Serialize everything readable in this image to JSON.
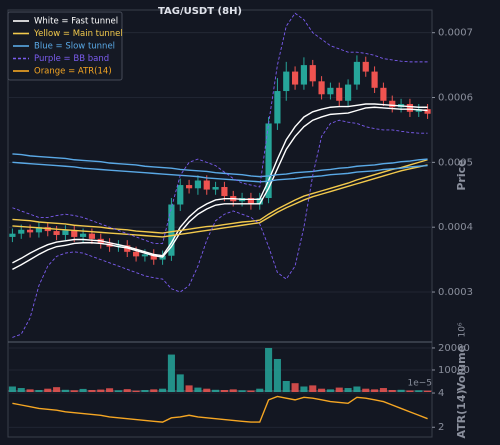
{
  "chart_data": {
    "type": "candlestick",
    "title": "TAG/USDT (8H)",
    "legend": "upper left",
    "up_color": "#26a69a",
    "down_color": "#ef5350",
    "open": [
      0.000385,
      0.00039,
      0.000396,
      0.000392,
      0.0004,
      0.000394,
      0.000388,
      0.000395,
      0.000385,
      0.00039,
      0.000382,
      0.000375,
      0.00037,
      0.000372,
      0.000362,
      0.000355,
      0.000358,
      0.00035,
      0.000356,
      0.000435,
      0.000465,
      0.00046,
      0.000472,
      0.000458,
      0.000462,
      0.000448,
      0.00044,
      0.000445,
      0.000435,
      0.000445,
      0.00056,
      0.00061,
      0.00064,
      0.00062,
      0.00065,
      0.000625,
      0.000605,
      0.000615,
      0.000595,
      0.00062,
      0.000655,
      0.00064,
      0.000615,
      0.000595,
      0.000585,
      0.00059,
      0.000578,
      0.000582
    ],
    "high": [
      0.000398,
      0.000404,
      0.000404,
      0.000408,
      0.000408,
      0.000402,
      0.000403,
      0.000403,
      0.000398,
      0.000398,
      0.00039,
      0.000383,
      0.00038,
      0.00038,
      0.00037,
      0.000366,
      0.000366,
      0.000364,
      0.000445,
      0.000475,
      0.000473,
      0.00048,
      0.00048,
      0.00047,
      0.00047,
      0.000456,
      0.000453,
      0.000453,
      0.000453,
      0.00057,
      0.00063,
      0.000655,
      0.000648,
      0.000662,
      0.000658,
      0.000633,
      0.000623,
      0.000623,
      0.000628,
      0.000665,
      0.000663,
      0.000648,
      0.000623,
      0.000603,
      0.000598,
      0.000598,
      0.00059,
      0.00059
    ],
    "low": [
      0.000377,
      0.000382,
      0.000384,
      0.000384,
      0.000386,
      0.00038,
      0.00038,
      0.000377,
      0.000377,
      0.000374,
      0.000367,
      0.000362,
      0.000362,
      0.000354,
      0.000347,
      0.000347,
      0.000342,
      0.000342,
      0.000348,
      0.000425,
      0.000452,
      0.00045,
      0.00045,
      0.00045,
      0.00044,
      0.000432,
      0.000432,
      0.000427,
      0.000427,
      0.000437,
      0.00055,
      0.000595,
      0.000612,
      0.000612,
      0.000617,
      0.000597,
      0.000597,
      0.000587,
      0.000587,
      0.000612,
      0.000632,
      0.000607,
      0.000587,
      0.000577,
      0.000577,
      0.00057,
      0.00057,
      0.000567
    ],
    "close": [
      0.00039,
      0.000396,
      0.000392,
      0.0004,
      0.000394,
      0.000388,
      0.000395,
      0.000385,
      0.00039,
      0.000382,
      0.000375,
      0.00037,
      0.000372,
      0.000362,
      0.000355,
      0.000358,
      0.00035,
      0.000356,
      0.000435,
      0.000465,
      0.00046,
      0.000472,
      0.000458,
      0.000462,
      0.000448,
      0.00044,
      0.000445,
      0.000435,
      0.000445,
      0.00056,
      0.00061,
      0.00064,
      0.00062,
      0.00065,
      0.000625,
      0.000605,
      0.000615,
      0.000595,
      0.00062,
      0.000655,
      0.00064,
      0.000615,
      0.000595,
      0.000585,
      0.00059,
      0.000578,
      0.000582,
      0.000575
    ],
    "volume": [
      2500,
      1800,
      1200,
      900,
      1500,
      2200,
      1000,
      800,
      1400,
      900,
      1100,
      1700,
      800,
      1300,
      600,
      900,
      1200,
      1500,
      17000,
      8000,
      3000,
      2000,
      1500,
      1000,
      900,
      1200,
      800,
      700,
      1500,
      20000,
      15000,
      5000,
      4000,
      2500,
      3000,
      1500,
      1200,
      2000,
      1800,
      2500,
      1500,
      1200,
      1800,
      900,
      1000,
      700,
      800,
      600
    ],
    "series": [
      {
        "name": "White = Fast tunnel",
        "color": "#ffffff",
        "panel": "price",
        "lines": [
          [
            0.000335,
            0.000342,
            0.00035,
            0.000358,
            0.000365,
            0.00037,
            0.000372,
            0.000375,
            0.000376,
            0.000376,
            0.000375,
            0.000373,
            0.00037,
            0.000368,
            0.000364,
            0.00036,
            0.000356,
            0.000354,
            0.00037,
            0.000392,
            0.000408,
            0.00042,
            0.000428,
            0.000434,
            0.000436,
            0.000436,
            0.000436,
            0.000436,
            0.000436,
            0.00046,
            0.00049,
            0.00052,
            0.00054,
            0.000555,
            0.000565,
            0.00057,
            0.000574,
            0.000575,
            0.000576,
            0.00058,
            0.000584,
            0.000585,
            0.000584,
            0.000583,
            0.000582,
            0.000582,
            0.000581,
            0.00058
          ],
          [
            0.000345,
            0.000352,
            0.00036,
            0.000367,
            0.000373,
            0.000377,
            0.000379,
            0.000381,
            0.000381,
            0.00038,
            0.000379,
            0.000376,
            0.000373,
            0.00037,
            0.000366,
            0.000362,
            0.000358,
            0.000356,
            0.000376,
            0.0004,
            0.000416,
            0.000428,
            0.000436,
            0.000442,
            0.000444,
            0.000444,
            0.000443,
            0.000443,
            0.000443,
            0.000472,
            0.000505,
            0.000535,
            0.000555,
            0.00057,
            0.000578,
            0.000582,
            0.000585,
            0.000586,
            0.000586,
            0.000588,
            0.00059,
            0.00059,
            0.000589,
            0.000588,
            0.000587,
            0.000586,
            0.000585,
            0.000585
          ]
        ]
      },
      {
        "name": "Yellow = Main tunnel",
        "color": "#f2c94c",
        "panel": "price",
        "lines": [
          [
            0.000412,
            0.000411,
            0.00041,
            0.000408,
            0.000407,
            0.000406,
            0.000405,
            0.000403,
            0.000402,
            0.000401,
            0.0004,
            0.000398,
            0.000397,
            0.000396,
            0.000394,
            0.000393,
            0.000392,
            0.000391,
            0.000393,
            0.000395,
            0.000397,
            0.000399,
            0.000401,
            0.000402,
            0.000404,
            0.000406,
            0.000408,
            0.000409,
            0.000411,
            0.00042,
            0.000428,
            0.000435,
            0.000442,
            0.000448,
            0.000452,
            0.000456,
            0.00046,
            0.000464,
            0.000468,
            0.000473,
            0.000477,
            0.000481,
            0.000485,
            0.000489,
            0.000492,
            0.000496,
            0.0005,
            0.000504
          ],
          [
            0.000402,
            0.000401,
            0.0004,
            0.000399,
            0.000398,
            0.000397,
            0.000396,
            0.000395,
            0.000394,
            0.000393,
            0.000392,
            0.000391,
            0.00039,
            0.000389,
            0.000388,
            0.000387,
            0.000386,
            0.000385,
            0.000387,
            0.000389,
            0.000391,
            0.000393,
            0.000395,
            0.000397,
            0.000399,
            0.000401,
            0.000403,
            0.000405,
            0.000407,
            0.000415,
            0.000423,
            0.00043,
            0.000436,
            0.000442,
            0.000447,
            0.000451,
            0.000455,
            0.000459,
            0.000463,
            0.000467,
            0.000471,
            0.000475,
            0.000479,
            0.000483,
            0.000487,
            0.00049,
            0.000493,
            0.000496
          ]
        ]
      },
      {
        "name": "Blue = Slow tunnel",
        "color": "#5aa9e6",
        "panel": "price",
        "lines": [
          [
            0.000513,
            0.000512,
            0.00051,
            0.000509,
            0.000508,
            0.000507,
            0.000506,
            0.000504,
            0.000503,
            0.000502,
            0.000501,
            0.000499,
            0.000498,
            0.000497,
            0.000496,
            0.000494,
            0.000493,
            0.000492,
            0.000491,
            0.000489,
            0.000488,
            0.000487,
            0.000486,
            0.000484,
            0.000483,
            0.000482,
            0.000481,
            0.000479,
            0.000478,
            0.000479,
            0.000481,
            0.000482,
            0.000484,
            0.000485,
            0.000486,
            0.000488,
            0.000489,
            0.000491,
            0.000492,
            0.000494,
            0.000495,
            0.000496,
            0.000498,
            0.000499,
            0.000501,
            0.000502,
            0.000504,
            0.000505
          ],
          [
            0.0005,
            0.000499,
            0.000498,
            0.000497,
            0.000496,
            0.000495,
            0.000494,
            0.000493,
            0.000491,
            0.00049,
            0.000489,
            0.000488,
            0.000487,
            0.000486,
            0.000485,
            0.000484,
            0.000483,
            0.000482,
            0.000481,
            0.00048,
            0.000479,
            0.000478,
            0.000476,
            0.000475,
            0.000474,
            0.000473,
            0.000472,
            0.000471,
            0.00047,
            0.000471,
            0.000473,
            0.000474,
            0.000475,
            0.000477,
            0.000478,
            0.000479,
            0.000481,
            0.000482,
            0.000483,
            0.000485,
            0.000486,
            0.000487,
            0.000489,
            0.00049,
            0.000491,
            0.000493,
            0.000494,
            0.000495
          ]
        ]
      },
      {
        "name": "Purple = BB band",
        "color": "#7b5cf0",
        "dashed": true,
        "panel": "price",
        "lines": [
          [
            0.00043,
            0.000425,
            0.00042,
            0.000415,
            0.000415,
            0.000418,
            0.00042,
            0.000418,
            0.000415,
            0.00041,
            0.000405,
            0.0004,
            0.000395,
            0.00039,
            0.000385,
            0.00038,
            0.000375,
            0.000375,
            0.00043,
            0.00048,
            0.0005,
            0.000505,
            0.0005,
            0.000495,
            0.000485,
            0.000475,
            0.000468,
            0.000465,
            0.000462,
            0.00056,
            0.00065,
            0.00071,
            0.00073,
            0.00072,
            0.0007,
            0.00069,
            0.00068,
            0.000675,
            0.00067,
            0.00067,
            0.000668,
            0.000665,
            0.00066,
            0.000658,
            0.000656,
            0.000655,
            0.000655,
            0.000655
          ],
          [
            0.00023,
            0.000235,
            0.00026,
            0.00031,
            0.00034,
            0.000355,
            0.00036,
            0.000362,
            0.00036,
            0.000355,
            0.00035,
            0.000345,
            0.00034,
            0.000335,
            0.00033,
            0.000325,
            0.000322,
            0.00032,
            0.000305,
            0.0003,
            0.00031,
            0.00034,
            0.00038,
            0.00041,
            0.00042,
            0.000425,
            0.00042,
            0.000415,
            0.000405,
            0.00037,
            0.00033,
            0.00032,
            0.00034,
            0.0004,
            0.00048,
            0.00054,
            0.00056,
            0.000565,
            0.000562,
            0.00056,
            0.000555,
            0.000552,
            0.00055,
            0.00055,
            0.000548,
            0.000546,
            0.000545,
            0.000545
          ]
        ]
      },
      {
        "name": "Orange = ATR(14)",
        "color": "#f5a623",
        "panel": "atr",
        "lines": [
          [
            3.4,
            3.3,
            3.2,
            3.1,
            3.05,
            3.0,
            2.9,
            2.85,
            2.8,
            2.75,
            2.7,
            2.6,
            2.55,
            2.5,
            2.45,
            2.4,
            2.35,
            2.3,
            2.55,
            2.6,
            2.7,
            2.6,
            2.55,
            2.5,
            2.45,
            2.4,
            2.35,
            2.3,
            2.3,
            3.6,
            3.8,
            3.7,
            3.6,
            3.75,
            3.7,
            3.6,
            3.5,
            3.45,
            3.4,
            3.75,
            3.7,
            3.6,
            3.5,
            3.3,
            3.1,
            2.9,
            2.7,
            2.5
          ]
        ]
      }
    ],
    "price": {
      "ylabel": "Price",
      "ylim": [
        0.000226,
        0.000735
      ],
      "yticks": [
        0.0003,
        0.0004,
        0.0005,
        0.0006,
        0.0007
      ],
      "grid": true
    },
    "volume_panel": {
      "ylabel": "Volume",
      "offset": "10⁶",
      "ylim": [
        0,
        21800
      ],
      "yticks": [
        10000,
        20000
      ],
      "grid": true
    },
    "atr": {
      "ylabel": "ATR(14)",
      "offset": "1e−5",
      "ylim": [
        1.43,
        4.06
      ],
      "yticks": [
        2,
        4
      ],
      "grid": true
    }
  }
}
